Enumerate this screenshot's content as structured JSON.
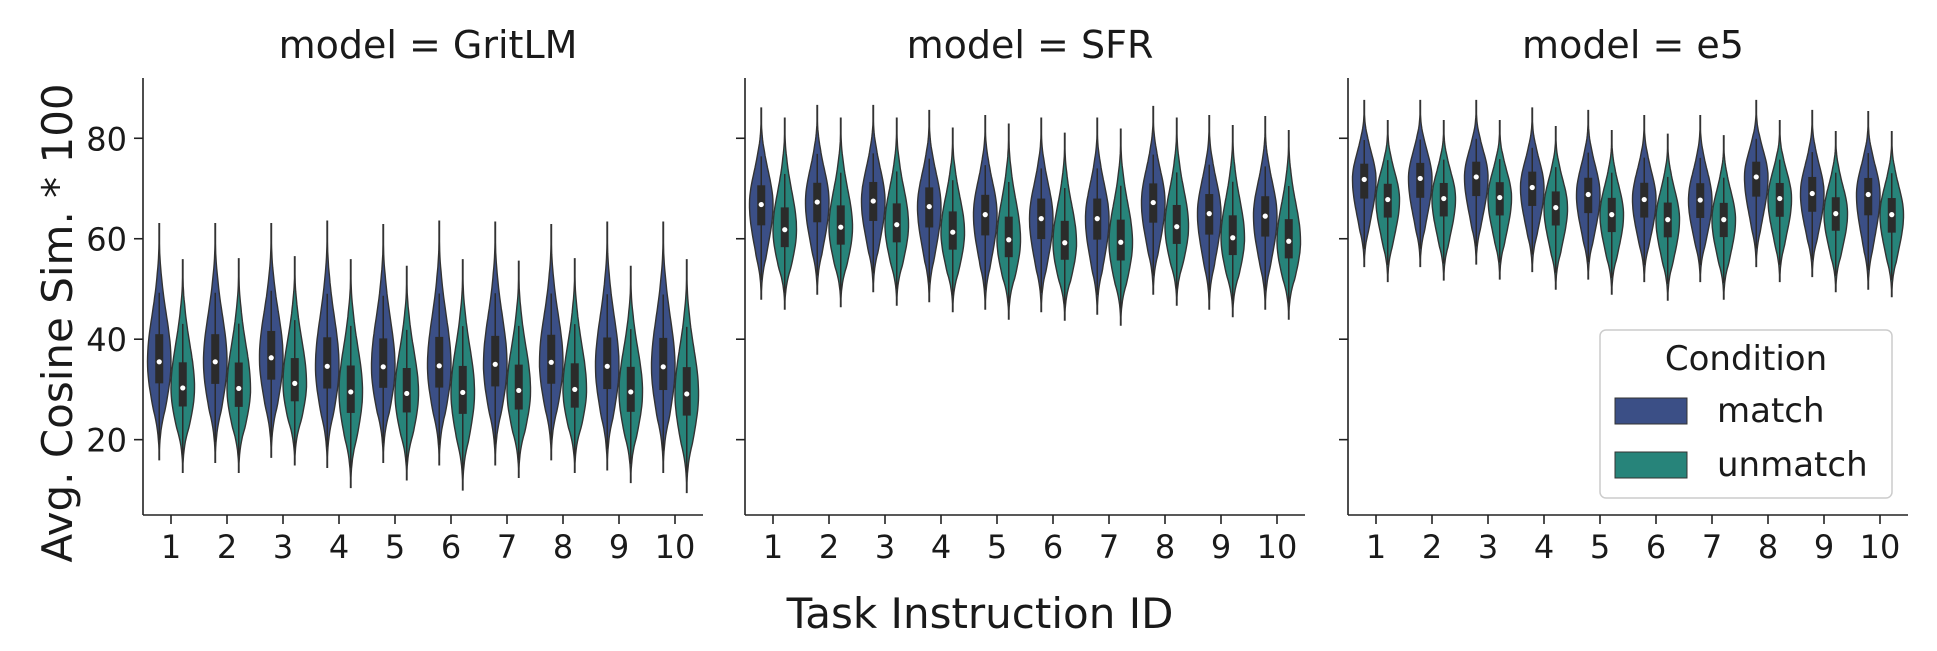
{
  "chart_data": {
    "type": "violin",
    "xlabel": "Task Instruction ID",
    "ylabel": "Avg. Cosine Sim. * 100",
    "ylim": [
      5,
      92
    ],
    "yticks": [
      20,
      40,
      60,
      80
    ],
    "categories": [
      "1",
      "2",
      "3",
      "4",
      "5",
      "6",
      "7",
      "8",
      "9",
      "10"
    ],
    "legend": {
      "title": "Condition",
      "placement": "lower right of third panel"
    },
    "series_colors": {
      "match": "#3b4f86",
      "unmatch": "#27847a"
    },
    "panels": [
      {
        "title": "model = GritLM",
        "series": [
          {
            "name": "match",
            "median": [
              35.5,
              35.5,
              36.3,
              34.6,
              34.5,
              34.7,
              35.0,
              35.4,
              34.6,
              34.5
            ],
            "min": [
              16,
              15.5,
              16.5,
              14.5,
              15.5,
              15,
              15,
              16,
              14,
              13.5
            ],
            "max": [
              63,
              63,
              63,
              63.5,
              62.8,
              63.5,
              63.3,
              62.8,
              63.3,
              63.3
            ]
          },
          {
            "name": "unmatch",
            "median": [
              30.3,
              30.2,
              31.2,
              29.5,
              29.2,
              29.4,
              29.8,
              30.0,
              29.5,
              29.1
            ],
            "min": [
              13.5,
              13.5,
              15,
              10.5,
              12,
              10,
              12.5,
              13.5,
              11.5,
              9.5
            ],
            "max": [
              55.8,
              56,
              56.4,
              55.8,
              54.5,
              55.8,
              55.5,
              56,
              54.5,
              55.8
            ]
          }
        ]
      },
      {
        "title": "model = SFR",
        "series": [
          {
            "name": "match",
            "median": [
              66.8,
              67.3,
              67.5,
              66.4,
              64.8,
              64.0,
              64.0,
              67.2,
              65.0,
              64.5
            ],
            "min": [
              48,
              49,
              49.5,
              47.5,
              46,
              45.5,
              45,
              49,
              46,
              46
            ],
            "max": [
              86,
              86.5,
              86.5,
              85.5,
              84.5,
              84,
              84,
              86.3,
              84.5,
              84.3
            ]
          },
          {
            "name": "unmatch",
            "median": [
              61.8,
              62.3,
              62.8,
              61.3,
              59.8,
              59.2,
              59.3,
              62.4,
              60.2,
              59.5
            ],
            "min": [
              46,
              46.5,
              46.8,
              45.5,
              44,
              43.8,
              42.8,
              46.8,
              44.5,
              44
            ],
            "max": [
              84,
              84,
              84,
              82,
              82.8,
              81,
              81.8,
              84,
              82.5,
              81.5
            ]
          }
        ]
      },
      {
        "title": "model = e5",
        "series": [
          {
            "name": "match",
            "median": [
              71.8,
              72.0,
              72.3,
              70.2,
              68.8,
              67.8,
              67.7,
              72.3,
              69.0,
              68.8
            ],
            "min": [
              54.5,
              54.5,
              55,
              53.5,
              52,
              51.5,
              51.5,
              54.5,
              52.5,
              50
            ],
            "max": [
              87.5,
              87.5,
              87.5,
              86,
              85.5,
              84.5,
              84.5,
              87.5,
              85.5,
              85.3
            ]
          },
          {
            "name": "unmatch",
            "median": [
              67.8,
              68.0,
              68.2,
              66.2,
              64.8,
              63.8,
              63.8,
              68.0,
              65.0,
              64.8
            ],
            "min": [
              51.5,
              51.8,
              52,
              50,
              49,
              47.8,
              48,
              51.5,
              49.5,
              48.5
            ],
            "max": [
              83.5,
              83.5,
              83.5,
              82.3,
              81.5,
              80.8,
              80.5,
              83.5,
              81.3,
              81.3
            ]
          }
        ]
      }
    ]
  }
}
